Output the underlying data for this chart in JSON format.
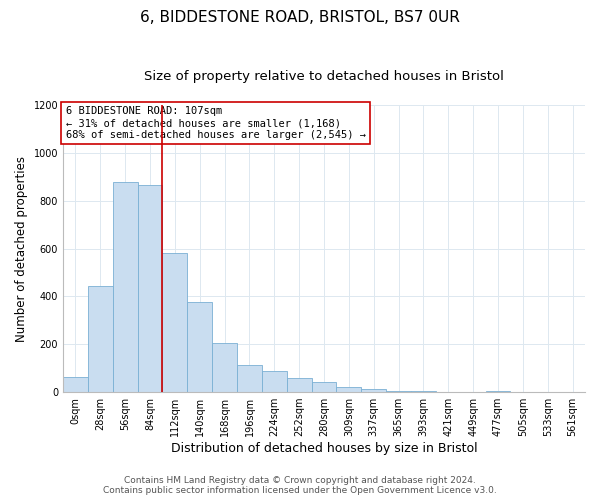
{
  "title": "6, BIDDESTONE ROAD, BRISTOL, BS7 0UR",
  "subtitle": "Size of property relative to detached houses in Bristol",
  "xlabel": "Distribution of detached houses by size in Bristol",
  "ylabel": "Number of detached properties",
  "bar_labels": [
    "0sqm",
    "28sqm",
    "56sqm",
    "84sqm",
    "112sqm",
    "140sqm",
    "168sqm",
    "196sqm",
    "224sqm",
    "252sqm",
    "280sqm",
    "309sqm",
    "337sqm",
    "365sqm",
    "393sqm",
    "421sqm",
    "449sqm",
    "477sqm",
    "505sqm",
    "533sqm",
    "561sqm"
  ],
  "bar_heights": [
    65,
    445,
    880,
    865,
    580,
    375,
    205,
    115,
    90,
    57,
    42,
    20,
    14,
    4,
    3,
    0,
    0,
    5,
    0,
    0,
    0
  ],
  "bar_color": "#c9ddf0",
  "bar_edge_color": "#7ab0d4",
  "vline_color": "#cc0000",
  "annotation_line1": "6 BIDDESTONE ROAD: 107sqm",
  "annotation_line2": "← 31% of detached houses are smaller (1,168)",
  "annotation_line3": "68% of semi-detached houses are larger (2,545) →",
  "annotation_box_color": "#ffffff",
  "annotation_box_edge": "#cc0000",
  "ylim": [
    0,
    1200
  ],
  "yticks": [
    0,
    200,
    400,
    600,
    800,
    1000,
    1200
  ],
  "footer_line1": "Contains HM Land Registry data © Crown copyright and database right 2024.",
  "footer_line2": "Contains public sector information licensed under the Open Government Licence v3.0.",
  "background_color": "#ffffff",
  "grid_color": "#dde8f0",
  "title_fontsize": 11,
  "subtitle_fontsize": 9.5,
  "xlabel_fontsize": 9,
  "ylabel_fontsize": 8.5,
  "tick_fontsize": 7,
  "annotation_fontsize": 7.5,
  "footer_fontsize": 6.5
}
